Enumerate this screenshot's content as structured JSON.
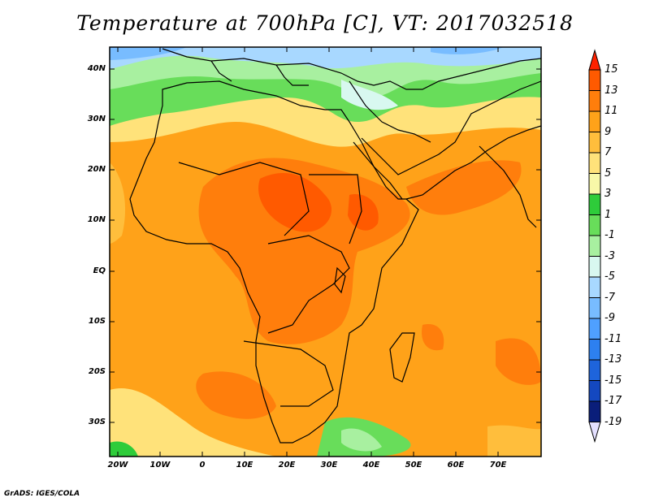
{
  "title": "Temperature at 700hPa [C], VT: 2017032518",
  "credit": "GrADS: IGES/COLA",
  "lat_labels": [
    "40N",
    "30N",
    "20N",
    "10N",
    "EQ",
    "10S",
    "20S",
    "30S"
  ],
  "lon_labels": [
    "20W",
    "10W",
    "0",
    "10E",
    "20E",
    "30E",
    "40E",
    "50E",
    "60E",
    "70E"
  ],
  "colorbar": {
    "labels": [
      "15",
      "13",
      "11",
      "9",
      "7",
      "5",
      "3",
      "1",
      "-1",
      "-3",
      "-5",
      "-7",
      "-9",
      "-11",
      "-13",
      "-15",
      "-17",
      "-19"
    ],
    "colors": [
      "#ff2200",
      "#ff5a00",
      "#ff7e0c",
      "#ffa219",
      "#ffbe3c",
      "#ffe27a",
      "#f8f8a8",
      "#2ecc3a",
      "#68dd5a",
      "#a8f0a0",
      "#d8f8f0",
      "#a8d8ff",
      "#78bcff",
      "#4fa0ff",
      "#2d80f0",
      "#1e64dc",
      "#1448c0",
      "#0a1e7a",
      "#e4e0ff"
    ]
  }
}
